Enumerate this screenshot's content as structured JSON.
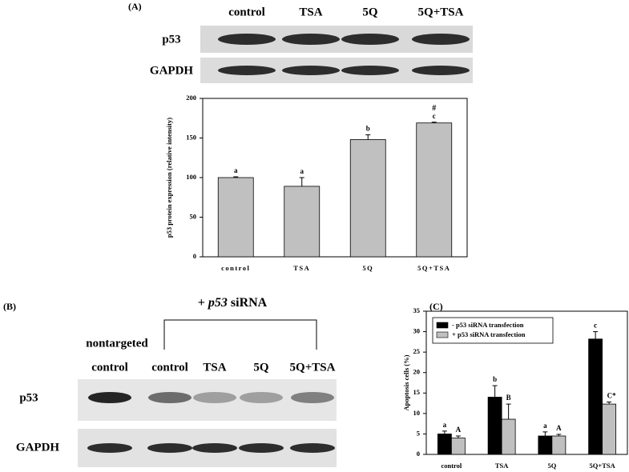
{
  "panel_a": {
    "label": "(A)",
    "lanes": [
      "control",
      "TSA",
      "5Q",
      "5Q+TSA"
    ],
    "rows": [
      "p53",
      "GAPDH"
    ]
  },
  "panel_b": {
    "label": "(B)",
    "treatment": [
      "+",
      "p53",
      "siRNA"
    ],
    "reference": "nontargeted",
    "lanes": [
      "control",
      "control",
      "TSA",
      "5Q",
      "5Q+TSA"
    ],
    "rows": [
      "p53",
      "GAPDH"
    ]
  },
  "panel_c": {
    "label": "(C)"
  },
  "chart_data": [
    {
      "type": "bar",
      "y_label": "p53 protein expression (relative intensity)",
      "categories": [
        "control",
        "TSA",
        "5Q",
        "5Q+TSA"
      ],
      "series": [
        {
          "color": "#c0c0c0",
          "values": [
            100,
            89,
            148,
            169
          ],
          "errors": [
            1,
            11,
            6,
            1
          ],
          "labels": [
            "a",
            "a",
            "b",
            "c"
          ],
          "extra_labels": [
            null,
            null,
            null,
            "#"
          ]
        }
      ],
      "ylim": [
        0,
        200
      ],
      "yticks": [
        0,
        50,
        100,
        150,
        200
      ]
    },
    {
      "type": "bar",
      "y_label": "Apoptosis cells (%)",
      "categories": [
        "control",
        "TSA",
        "5Q",
        "5Q+TSA"
      ],
      "series": [
        {
          "name": "- p53 siRNA transfection",
          "color": "#000000",
          "values": [
            5,
            14,
            4.5,
            28.2
          ],
          "errors": [
            0.7,
            2.8,
            1,
            1.8
          ],
          "labels": [
            "a",
            "b",
            "a",
            "c"
          ]
        },
        {
          "name": "+ p53 siRNA transfection",
          "color": "#c0c0c0",
          "values": [
            4,
            8.6,
            4.5,
            12.3
          ],
          "errors": [
            0.5,
            3.7,
            0.4,
            0.5
          ],
          "labels": [
            "A",
            "B",
            "A",
            "C*"
          ]
        }
      ],
      "ylim": [
        0,
        35
      ],
      "yticks": [
        0,
        5,
        10,
        15,
        20,
        25,
        30,
        35
      ],
      "legend": "upper left"
    }
  ]
}
